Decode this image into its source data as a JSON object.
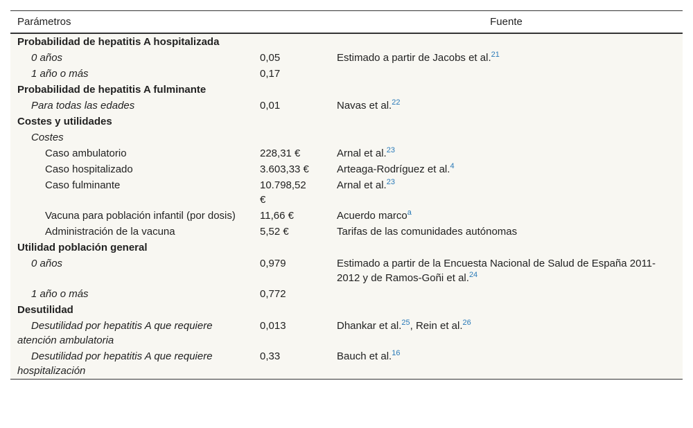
{
  "table": {
    "header": {
      "param": "Parámetros",
      "source": "Fuente"
    },
    "rows": [
      {
        "level": 0,
        "label": "Probabilidad de hepatitis A hospitalizada"
      },
      {
        "level": 1,
        "label": "0 años",
        "value": "0,05",
        "source": [
          {
            "text": "Estimado a partir de Jacobs et al.",
            "ref": "21"
          }
        ]
      },
      {
        "level": 1,
        "label": "1 año o más",
        "value": "0,17"
      },
      {
        "level": 0,
        "label": "Probabilidad de hepatitis A fulminante"
      },
      {
        "level": 1,
        "label": "Para todas las edades",
        "value": "0,01",
        "source": [
          {
            "text": "Navas et al.",
            "ref": "22"
          }
        ]
      },
      {
        "level": 0,
        "label": "Costes y utilidades"
      },
      {
        "level": 1,
        "label": "Costes"
      },
      {
        "level": 2,
        "label": "Caso ambulatorio",
        "value": "228,31 €",
        "source": [
          {
            "text": "Arnal et al.",
            "ref": "23"
          }
        ]
      },
      {
        "level": 2,
        "label": "Caso hospitalizado",
        "value": "3.603,33 €",
        "source": [
          {
            "text": "Arteaga-Rodríguez et al.",
            "ref": "4"
          }
        ]
      },
      {
        "level": 2,
        "label": "Caso fulminante",
        "value": "10.798,52 €",
        "source": [
          {
            "text": "Arnal et al.",
            "ref": "23"
          }
        ]
      },
      {
        "level": 2,
        "label": "Vacuna para población infantil (por dosis)",
        "value": "11,66 €",
        "source": [
          {
            "text": "Acuerdo marco",
            "ref": "a"
          }
        ]
      },
      {
        "level": 2,
        "label": "Administración de la vacuna",
        "value": "5,52 €",
        "source": [
          {
            "text": "Tarifas de las comunidades autónomas"
          }
        ]
      },
      {
        "level": 0,
        "label": "Utilidad población general"
      },
      {
        "level": 1,
        "label": "0 años",
        "value": "0,979",
        "source": [
          {
            "text": "Estimado a partir de la Encuesta Nacional de Salud de España 2011-2012 y de Ramos-Goñi et al.",
            "ref": "24"
          }
        ]
      },
      {
        "level": 1,
        "label": "1 año o más",
        "value": "0,772"
      },
      {
        "level": 0,
        "label": "Desutilidad"
      },
      {
        "level": 1,
        "label": "Desutilidad por hepatitis A que requiere atención ambulatoria",
        "value": "0,013",
        "source": [
          {
            "text": "Dhankar et al.",
            "ref": "25"
          },
          {
            "text": ", Rein et al.",
            "ref": "26"
          }
        ]
      },
      {
        "level": 1,
        "label": "Desutilidad por hepatitis A que requiere hospitalización",
        "value": "0,33",
        "source": [
          {
            "text": "Bauch et al.",
            "ref": "16"
          }
        ]
      }
    ]
  }
}
